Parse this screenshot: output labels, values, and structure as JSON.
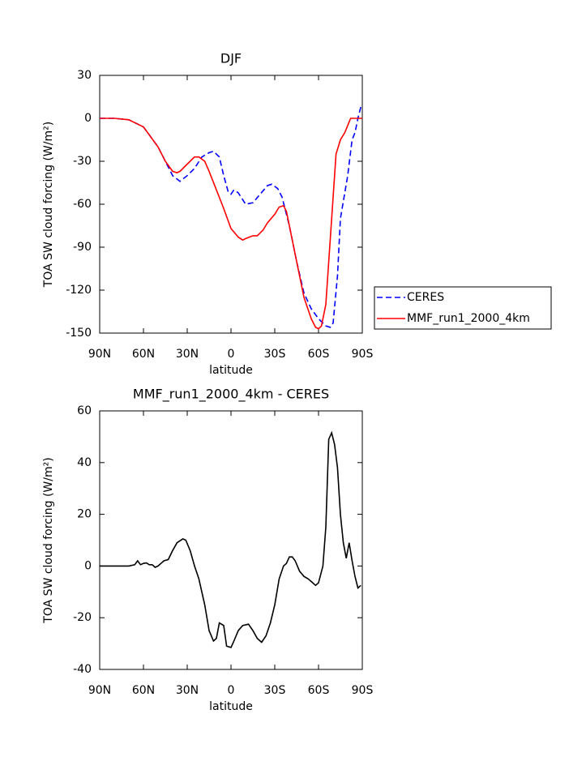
{
  "chart_data": [
    {
      "type": "line",
      "title": "DJF",
      "xlabel": "latitude",
      "ylabel": "TOA SW cloud forcing (W/m²)",
      "xlim": [
        90,
        -90
      ],
      "ylim": [
        -150,
        30
      ],
      "xticks": [
        {
          "value": 90,
          "label": "90N"
        },
        {
          "value": 60,
          "label": "60N"
        },
        {
          "value": 30,
          "label": "30N"
        },
        0,
        {
          "value": -30,
          "label": "30S"
        },
        {
          "value": -60,
          "label": "60S"
        },
        {
          "value": -90,
          "label": "90S"
        }
      ],
      "yticks": [
        -150,
        -120,
        -90,
        -60,
        -30,
        0,
        30
      ],
      "legend": "right",
      "series": [
        {
          "name": "CERES",
          "color": "#0000ff",
          "linestyle": "dashed",
          "x": [
            90,
            80,
            70,
            60,
            50,
            45,
            40,
            35,
            30,
            25,
            20,
            15,
            12,
            8,
            5,
            2,
            0,
            -2,
            -5,
            -10,
            -15,
            -20,
            -25,
            -28,
            -32,
            -35,
            -40,
            -45,
            -50,
            -55,
            -60,
            -65,
            -68,
            -70,
            -73,
            -75,
            -80,
            -83,
            -85,
            -87,
            -89,
            -90
          ],
          "values": [
            0,
            0,
            -1,
            -6,
            -20,
            -30,
            -40,
            -44,
            -40,
            -35,
            -27,
            -24,
            -23,
            -27,
            -40,
            -51,
            -53,
            -50,
            -52,
            -60,
            -59,
            -53,
            -47,
            -46,
            -49,
            -55,
            -75,
            -100,
            -122,
            -133,
            -140,
            -145,
            -146,
            -143,
            -110,
            -70,
            -40,
            -15,
            -10,
            0,
            8,
            8
          ]
        },
        {
          "name": "MMF_run1_2000_4km",
          "color": "#ff0000",
          "linestyle": "solid",
          "x": [
            90,
            80,
            70,
            60,
            50,
            45,
            40,
            37,
            35,
            30,
            25,
            22,
            18,
            15,
            10,
            5,
            0,
            -5,
            -8,
            -10,
            -15,
            -18,
            -22,
            -25,
            -30,
            -33,
            -36,
            -38,
            -42,
            -45,
            -50,
            -55,
            -58,
            -60,
            -62,
            -65,
            -67,
            -70,
            -72,
            -75,
            -78,
            -80,
            -82,
            -85,
            -90
          ],
          "values": [
            0,
            0,
            -1,
            -6,
            -20,
            -30,
            -37,
            -38,
            -37,
            -32,
            -27,
            -27,
            -30,
            -37,
            -50,
            -63,
            -77,
            -83,
            -85,
            -84,
            -82,
            -82,
            -78,
            -73,
            -67,
            -62,
            -61,
            -65,
            -85,
            -100,
            -125,
            -140,
            -146,
            -147,
            -145,
            -130,
            -100,
            -55,
            -25,
            -15,
            -10,
            -5,
            0,
            0,
            0
          ]
        }
      ]
    },
    {
      "type": "line",
      "title": "MMF_run1_2000_4km - CERES",
      "xlabel": "latitude",
      "ylabel": "TOA SW cloud forcing (W/m²)",
      "xlim": [
        90,
        -90
      ],
      "ylim": [
        -40,
        60
      ],
      "xticks": [
        {
          "value": 90,
          "label": "90N"
        },
        {
          "value": 60,
          "label": "60N"
        },
        {
          "value": 30,
          "label": "30N"
        },
        0,
        {
          "value": -30,
          "label": "30S"
        },
        {
          "value": -60,
          "label": "60S"
        },
        {
          "value": -90,
          "label": "90S"
        }
      ],
      "yticks": [
        -40,
        -20,
        0,
        20,
        40,
        60
      ],
      "series": [
        {
          "color": "#000000",
          "linestyle": "solid",
          "x": [
            90,
            70,
            66,
            64,
            62,
            60,
            58,
            56,
            54,
            52,
            50,
            48,
            46,
            43,
            40,
            37,
            33,
            31,
            28,
            25,
            22,
            18,
            15,
            12,
            10,
            8,
            5,
            3,
            0,
            -2,
            -5,
            -8,
            -12,
            -15,
            -18,
            -21,
            -24,
            -27,
            -30,
            -33,
            -36,
            -38,
            -40,
            -42,
            -44,
            -47,
            -50,
            -53,
            -56,
            -58,
            -60,
            -63,
            -65,
            -67,
            -69,
            -71,
            -73,
            -75,
            -77,
            -79,
            -81,
            -83,
            -85,
            -87,
            -89
          ],
          "values": [
            0,
            0,
            0.5,
            2,
            0.5,
            1,
            1.2,
            0.5,
            0.5,
            -0.5,
            0,
            1,
            2,
            2.5,
            6,
            9,
            10.5,
            10,
            6,
            0,
            -5,
            -15,
            -25,
            -29,
            -28,
            -22,
            -23,
            -31,
            -31.5,
            -29,
            -25,
            -23,
            -22.5,
            -25,
            -28,
            -29.5,
            -27,
            -22,
            -15,
            -5,
            0,
            1,
            3.5,
            3.5,
            2,
            -2,
            -4,
            -5,
            -6.5,
            -7.5,
            -6.5,
            0,
            15,
            49,
            51.5,
            47,
            38,
            20,
            9,
            3,
            9,
            2,
            -4,
            -8.5,
            -7.5
          ]
        }
      ]
    }
  ]
}
